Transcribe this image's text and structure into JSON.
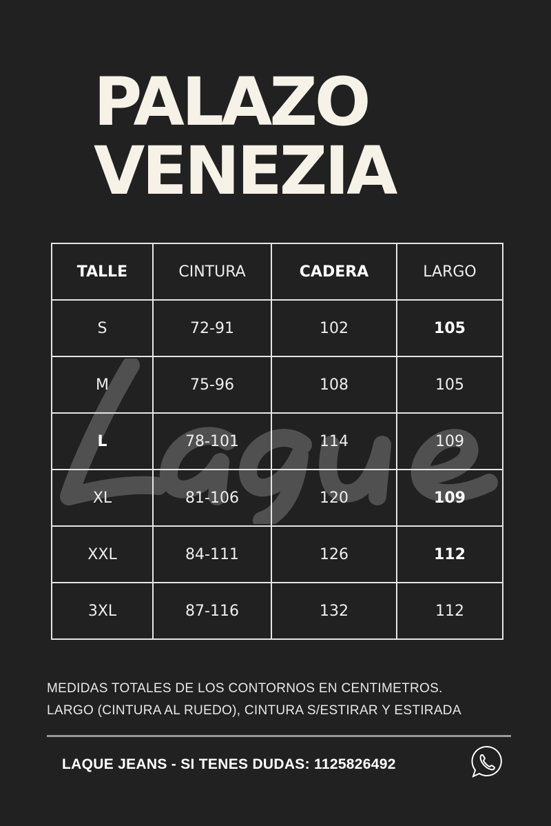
{
  "title": {
    "line1": "PALAZO",
    "line2": "VENEZIA"
  },
  "watermark": "Laque",
  "table": {
    "headers": [
      {
        "label": "TALLE",
        "bold": true
      },
      {
        "label": "CINTURA",
        "bold": false
      },
      {
        "label": "CADERA",
        "bold": true
      },
      {
        "label": "LARGO",
        "bold": false
      }
    ],
    "rows": [
      {
        "talle": "S",
        "cintura": "72-91",
        "cadera": "102",
        "largo": "105",
        "bold": [
          "largo"
        ]
      },
      {
        "talle": "M",
        "cintura": "75-96",
        "cadera": "108",
        "largo": "105",
        "bold": []
      },
      {
        "talle": "L",
        "cintura": "78-101",
        "cadera": "114",
        "largo": "109",
        "bold": [
          "talle"
        ]
      },
      {
        "talle": "XL",
        "cintura": "81-106",
        "cadera": "120",
        "largo": "109",
        "bold": [
          "largo"
        ]
      },
      {
        "talle": "XXL",
        "cintura": "84-111",
        "cadera": "126",
        "largo": "112",
        "bold": [
          "largo"
        ]
      },
      {
        "talle": "3XL",
        "cintura": "87-116",
        "cadera": "132",
        "largo": "112",
        "bold": []
      }
    ]
  },
  "notes": {
    "line1": "MEDIDAS TOTALES DE LOS CONTORNOS EN CENTIMETROS.",
    "line2": "LARGO (CINTURA AL RUEDO), CINTURA S/ESTIRAR Y ESTIRADA"
  },
  "footer": {
    "text": "LAQUE JEANS - SI TENES DUDAS: 1125826492",
    "icon": "whatsapp-icon"
  }
}
